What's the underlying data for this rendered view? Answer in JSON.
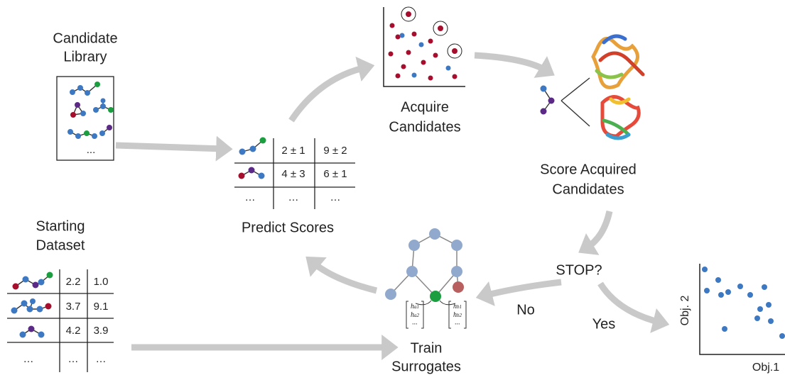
{
  "candidate_library": {
    "title_lines": [
      "Candidate",
      "Library"
    ],
    "more": "..."
  },
  "predict_scores": {
    "rows": [
      [
        "2 ± 1",
        "9 ± 2"
      ],
      [
        "4 ± 3",
        "6 ± 1"
      ],
      [
        "…",
        "…",
        "…"
      ]
    ],
    "label": "Predict Scores"
  },
  "acquire": {
    "label_lines": [
      "Acquire",
      "Candidates"
    ]
  },
  "score": {
    "label_lines": [
      "Score Acquired",
      "Candidates"
    ]
  },
  "decision": {
    "question": "STOP?",
    "no": "No",
    "yes": "Yes"
  },
  "train": {
    "label_lines": [
      "Train",
      "Surrogates"
    ],
    "vector_a": [
      {
        "symbol": "h",
        "sub": "a1"
      },
      {
        "symbol": "h",
        "sub": "a2"
      },
      "..."
    ],
    "vector_b": [
      {
        "symbol": "h",
        "sub": "b1"
      },
      {
        "symbol": "h",
        "sub": "b2"
      },
      "..."
    ]
  },
  "starting_dataset": {
    "title_lines": [
      "Starting",
      "Dataset"
    ],
    "rows": [
      [
        "2.2",
        "1.0"
      ],
      [
        "3.7",
        "9.1"
      ],
      [
        "4.2",
        "3.9"
      ],
      [
        "…",
        "…",
        "…"
      ]
    ]
  },
  "pareto_plot": {
    "ylabel": "Obj. 2",
    "xlabel": "Obj.1"
  }
}
